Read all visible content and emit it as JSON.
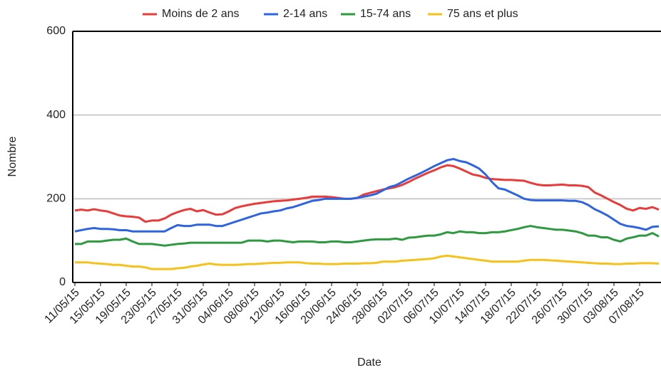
{
  "chart_data": {
    "type": "line",
    "x_label": "Date",
    "y_label": "Nombre",
    "categories": [
      "11/05/15",
      null,
      null,
      null,
      "15/05/15",
      null,
      null,
      null,
      "19/05/15",
      null,
      null,
      null,
      "23/05/15",
      null,
      null,
      null,
      "27/05/15",
      null,
      null,
      null,
      "31/05/15",
      null,
      null,
      null,
      "04/06/15",
      null,
      null,
      null,
      "08/06/15",
      null,
      null,
      null,
      "12/06/15",
      null,
      null,
      null,
      "16/06/15",
      null,
      null,
      null,
      "20/06/15",
      null,
      null,
      null,
      "24/06/15",
      null,
      null,
      null,
      "28/06/15",
      null,
      null,
      null,
      "02/07/15",
      null,
      null,
      null,
      "06/07/15",
      null,
      null,
      null,
      "10/07/15",
      null,
      null,
      null,
      "14/07/15",
      null,
      null,
      null,
      "18/07/15",
      null,
      null,
      null,
      "22/07/15",
      null,
      null,
      null,
      "26/07/15",
      null,
      null,
      null,
      "30/07/15",
      null,
      null,
      null,
      "03/08/15",
      null,
      null,
      null,
      "07/08/15",
      null,
      null,
      null
    ],
    "series": [
      {
        "name": "Moins de 2 ans",
        "color": "#ea3b3b",
        "values": [
          172,
          174,
          172,
          175,
          172,
          170,
          165,
          160,
          158,
          157,
          155,
          145,
          148,
          148,
          153,
          162,
          168,
          173,
          176,
          170,
          173,
          167,
          162,
          163,
          170,
          178,
          182,
          185,
          188,
          190,
          192,
          194,
          195,
          196,
          198,
          200,
          202,
          205,
          205,
          205,
          204,
          202,
          200,
          200,
          202,
          210,
          214,
          218,
          222,
          225,
          228,
          233,
          240,
          248,
          255,
          262,
          268,
          275,
          280,
          278,
          272,
          265,
          258,
          255,
          250,
          247,
          246,
          245,
          245,
          244,
          243,
          238,
          234,
          232,
          232,
          233,
          234,
          232,
          232,
          231,
          228,
          215,
          208,
          200,
          192,
          185,
          176,
          172,
          178,
          176,
          180,
          174
        ]
      },
      {
        "name": "2-14 ans",
        "color": "#2f64e0",
        "values": [
          122,
          125,
          128,
          130,
          128,
          128,
          127,
          125,
          125,
          122,
          122,
          122,
          122,
          122,
          122,
          130,
          137,
          135,
          135,
          138,
          138,
          138,
          135,
          135,
          140,
          145,
          150,
          155,
          160,
          165,
          167,
          170,
          172,
          177,
          180,
          185,
          190,
          195,
          197,
          200,
          200,
          200,
          200,
          200,
          202,
          205,
          208,
          212,
          220,
          228,
          232,
          240,
          248,
          255,
          262,
          270,
          278,
          285,
          292,
          295,
          290,
          287,
          280,
          272,
          258,
          240,
          225,
          222,
          215,
          208,
          200,
          197,
          196,
          196,
          196,
          196,
          196,
          195,
          195,
          192,
          185,
          175,
          168,
          160,
          150,
          140,
          135,
          133,
          130,
          126,
          133,
          134
        ]
      },
      {
        "name": "15-74 ans",
        "color": "#2e9a3f",
        "values": [
          92,
          92,
          98,
          98,
          98,
          100,
          102,
          102,
          105,
          98,
          92,
          92,
          92,
          90,
          88,
          90,
          92,
          93,
          95,
          95,
          95,
          95,
          95,
          95,
          95,
          95,
          95,
          100,
          100,
          100,
          98,
          100,
          100,
          98,
          96,
          98,
          98,
          98,
          96,
          96,
          98,
          98,
          96,
          96,
          98,
          100,
          102,
          103,
          103,
          103,
          105,
          102,
          107,
          108,
          110,
          112,
          112,
          115,
          120,
          118,
          122,
          120,
          120,
          118,
          118,
          120,
          120,
          122,
          125,
          128,
          132,
          135,
          132,
          130,
          128,
          126,
          126,
          124,
          122,
          118,
          112,
          112,
          108,
          108,
          102,
          98,
          105,
          108,
          112,
          112,
          118,
          110
        ]
      },
      {
        "name": "75 ans et plus",
        "color": "#f5c21b",
        "values": [
          48,
          48,
          48,
          46,
          45,
          44,
          42,
          42,
          40,
          38,
          38,
          36,
          32,
          32,
          32,
          32,
          34,
          35,
          38,
          40,
          43,
          45,
          43,
          42,
          42,
          42,
          43,
          44,
          44,
          45,
          46,
          47,
          47,
          48,
          48,
          48,
          46,
          45,
          45,
          44,
          44,
          44,
          45,
          45,
          45,
          46,
          46,
          47,
          50,
          50,
          50,
          52,
          53,
          54,
          55,
          56,
          58,
          62,
          64,
          62,
          60,
          58,
          56,
          54,
          52,
          50,
          50,
          50,
          50,
          50,
          52,
          54,
          54,
          54,
          53,
          52,
          51,
          50,
          49,
          48,
          47,
          46,
          45,
          45,
          44,
          44,
          45,
          45,
          46,
          46,
          46,
          45
        ]
      }
    ],
    "ylim": [
      0,
      600
    ],
    "yticks": [
      0,
      200,
      400,
      600
    ],
    "grid": true,
    "legend": "top"
  }
}
